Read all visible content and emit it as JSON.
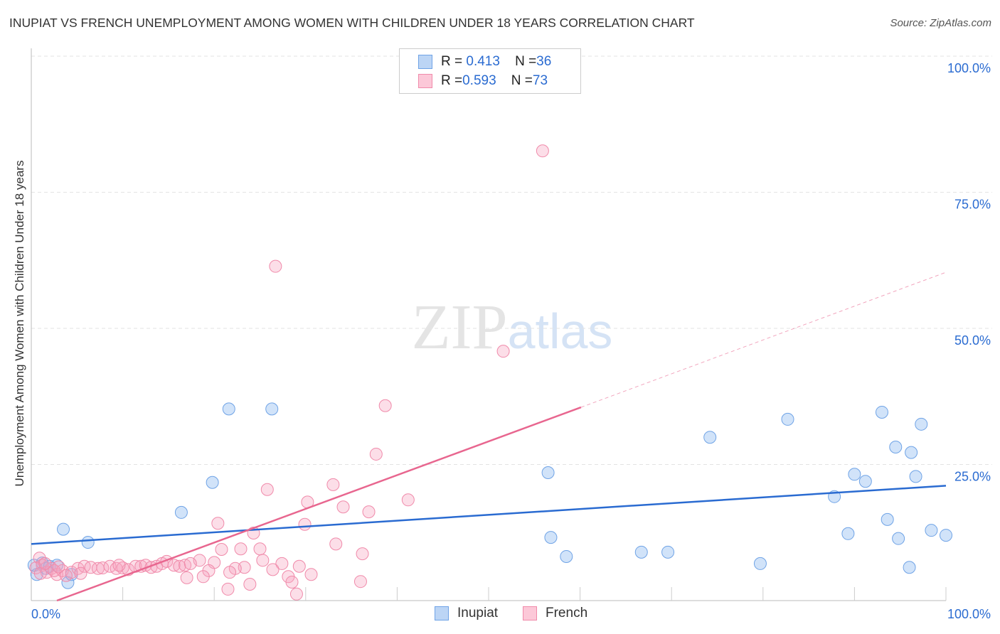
{
  "title": "INUPIAT VS FRENCH UNEMPLOYMENT AMONG WOMEN WITH CHILDREN UNDER 18 YEARS CORRELATION CHART",
  "source": "Source: ZipAtlas.com",
  "colors": {
    "inupiat": "#6fa3e6",
    "inupiat_line": "#2a6bd1",
    "french": "#f08aaa",
    "french_line": "#e8668f"
  },
  "legend": {
    "rows": [
      {
        "r_label": "R = ",
        "r": "0.413",
        "n_label": "N = ",
        "n": "36"
      },
      {
        "r_label": "R = ",
        "r": "0.593",
        "n_label": "N = ",
        "n": "73"
      }
    ]
  },
  "chart_data": {
    "type": "scatter",
    "xlabel": "",
    "ylabel": "Unemployment Among Women with Children Under 18 years",
    "xlim": [
      0,
      100
    ],
    "ylim": [
      0,
      100
    ],
    "x_ticks": [
      "0.0%",
      "100.0%"
    ],
    "y_ticks": [
      "100.0%",
      "75.0%",
      "50.0%",
      "25.0%"
    ],
    "watermark": "ZIPatlas",
    "series": [
      {
        "name": "Inupiat",
        "trend": [
          [
            0,
            10.4
          ],
          [
            100,
            21.1
          ]
        ],
        "points": [
          [
            21.6,
            35.2
          ],
          [
            26.3,
            35.2
          ],
          [
            19.8,
            21.7
          ],
          [
            16.4,
            16.2
          ],
          [
            3.5,
            13.1
          ],
          [
            6.2,
            10.7
          ],
          [
            56.5,
            23.5
          ],
          [
            56.8,
            11.6
          ],
          [
            58.5,
            8.1
          ],
          [
            66.7,
            8.9
          ],
          [
            69.6,
            8.9
          ],
          [
            74.2,
            30.0
          ],
          [
            79.7,
            6.8
          ],
          [
            82.7,
            33.3
          ],
          [
            87.8,
            19.1
          ],
          [
            89.3,
            12.3
          ],
          [
            90.0,
            23.2
          ],
          [
            91.2,
            21.9
          ],
          [
            93.0,
            34.6
          ],
          [
            93.6,
            14.9
          ],
          [
            94.5,
            28.2
          ],
          [
            94.8,
            11.4
          ],
          [
            96.0,
            6.1
          ],
          [
            96.2,
            27.2
          ],
          [
            96.7,
            22.8
          ],
          [
            97.3,
            32.4
          ],
          [
            98.4,
            12.9
          ],
          [
            100,
            12.0
          ],
          [
            0.6,
            4.8
          ],
          [
            1.2,
            6.9
          ],
          [
            1.6,
            5.9
          ],
          [
            2.0,
            6.3
          ],
          [
            2.8,
            6.5
          ],
          [
            4.0,
            3.3
          ],
          [
            4.4,
            4.8
          ],
          [
            0.3,
            6.5
          ]
        ]
      },
      {
        "name": "French",
        "trend": [
          [
            2.8,
            0
          ],
          [
            60.1,
            35.5
          ]
        ],
        "trend_dashed": [
          [
            60.1,
            35.5
          ],
          [
            100,
            60.3
          ]
        ],
        "points": [
          [
            55.9,
            82.6
          ],
          [
            26.7,
            61.4
          ],
          [
            51.6,
            45.8
          ],
          [
            38.7,
            35.8
          ],
          [
            37.7,
            26.9
          ],
          [
            25.8,
            20.4
          ],
          [
            33,
            21.3
          ],
          [
            41.2,
            18.5
          ],
          [
            30.2,
            18.1
          ],
          [
            34.1,
            17.2
          ],
          [
            36.9,
            16.3
          ],
          [
            20.4,
            14.2
          ],
          [
            29.9,
            14.0
          ],
          [
            24.3,
            12.4
          ],
          [
            33.3,
            10.4
          ],
          [
            20.8,
            9.4
          ],
          [
            22.9,
            9.5
          ],
          [
            25.0,
            9.5
          ],
          [
            36.2,
            8.6
          ],
          [
            25.3,
            7.4
          ],
          [
            18.4,
            7.4
          ],
          [
            20,
            7.0
          ],
          [
            27.4,
            6.8
          ],
          [
            29.3,
            6.3
          ],
          [
            23.3,
            6.1
          ],
          [
            22.3,
            5.9
          ],
          [
            26.4,
            5.7
          ],
          [
            19.4,
            5.5
          ],
          [
            21.7,
            5.2
          ],
          [
            30.6,
            4.8
          ],
          [
            28.1,
            4.4
          ],
          [
            18.8,
            4.4
          ],
          [
            17,
            4.2
          ],
          [
            28.5,
            3.4
          ],
          [
            23.9,
            3.0
          ],
          [
            36,
            3.5
          ],
          [
            21.5,
            2.1
          ],
          [
            29,
            1.2
          ],
          [
            0.9,
            7.8
          ],
          [
            1.2,
            6.5
          ],
          [
            1.7,
            5.2
          ],
          [
            2.2,
            5.9
          ],
          [
            2.8,
            4.8
          ],
          [
            3.4,
            5.5
          ],
          [
            4.4,
            5.2
          ],
          [
            5.1,
            5.9
          ],
          [
            5.8,
            6.3
          ],
          [
            6.5,
            6.1
          ],
          [
            7.3,
            5.9
          ],
          [
            7.8,
            6.0
          ],
          [
            8.6,
            6.3
          ],
          [
            9.3,
            5.9
          ],
          [
            10.0,
            6.0
          ],
          [
            10.6,
            5.7
          ],
          [
            11.4,
            6.3
          ],
          [
            12.0,
            6.3
          ],
          [
            12.5,
            6.5
          ],
          [
            13.1,
            6.1
          ],
          [
            13.7,
            6.3
          ],
          [
            14.3,
            6.8
          ],
          [
            14.8,
            7.2
          ],
          [
            15.6,
            6.5
          ],
          [
            16.2,
            6.3
          ],
          [
            16.8,
            6.5
          ],
          [
            17.4,
            6.8
          ],
          [
            0.5,
            6.0
          ],
          [
            1.0,
            5.0
          ],
          [
            1.5,
            6.8
          ],
          [
            2.5,
            5.5
          ],
          [
            3.0,
            6.2
          ],
          [
            3.8,
            4.6
          ],
          [
            5.4,
            5.0
          ],
          [
            9.6,
            6.5
          ]
        ]
      }
    ]
  }
}
